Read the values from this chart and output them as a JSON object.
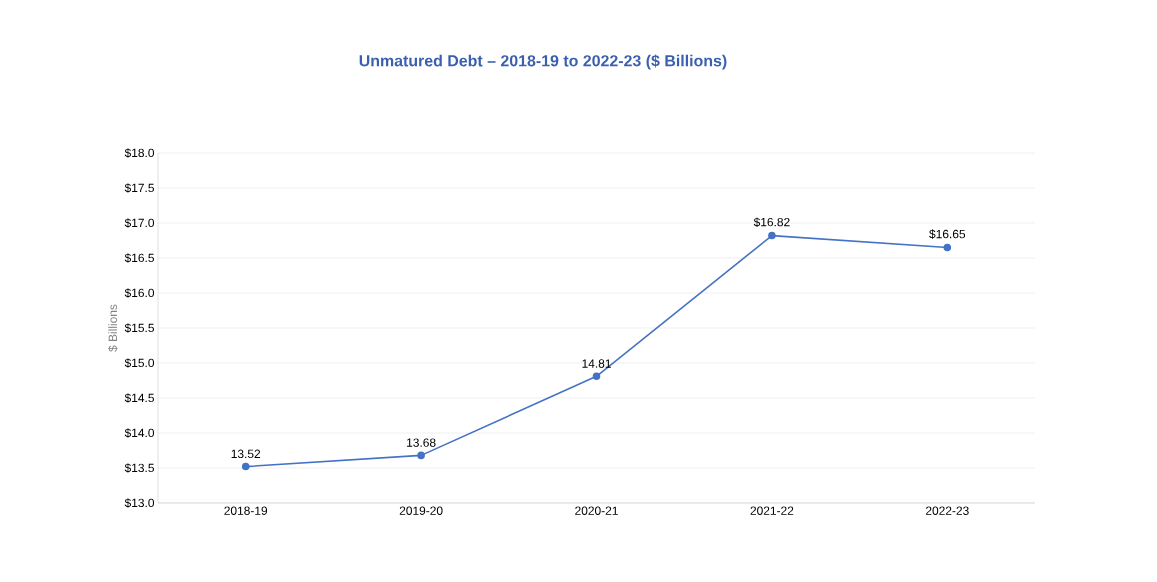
{
  "chart_data": {
    "type": "line",
    "title": "Unmatured Debt – 2018-19 to 2022-23 ($ Billions)",
    "ylabel": "$ Billions",
    "categories": [
      "2018-19",
      "2019-20",
      "2020-21",
      "2021-22",
      "2022-23"
    ],
    "series": [
      {
        "color": "#4472c4",
        "values": [
          13.52,
          13.68,
          14.81,
          16.82,
          16.65
        ],
        "value_labels": [
          "13.52",
          "13.68",
          "14.81",
          "$16.82",
          "$16.65"
        ]
      }
    ],
    "ylim": [
      13.0,
      18.0
    ],
    "yticks": [
      {
        "value": 13.0,
        "label": "$13.0"
      },
      {
        "value": 13.5,
        "label": "$13.5"
      },
      {
        "value": 14.0,
        "label": "$14.0"
      },
      {
        "value": 14.5,
        "label": "$14.5"
      },
      {
        "value": 15.0,
        "label": "$15.0"
      },
      {
        "value": 15.5,
        "label": "$15.5"
      },
      {
        "value": 16.0,
        "label": "$16.0"
      },
      {
        "value": 16.5,
        "label": "$16.5"
      },
      {
        "value": 17.0,
        "label": "$17.0"
      },
      {
        "value": 17.5,
        "label": "$17.5"
      },
      {
        "value": 18.0,
        "label": "$18.0"
      }
    ],
    "grid": "y",
    "marker": "circle",
    "line_style": "solid"
  }
}
